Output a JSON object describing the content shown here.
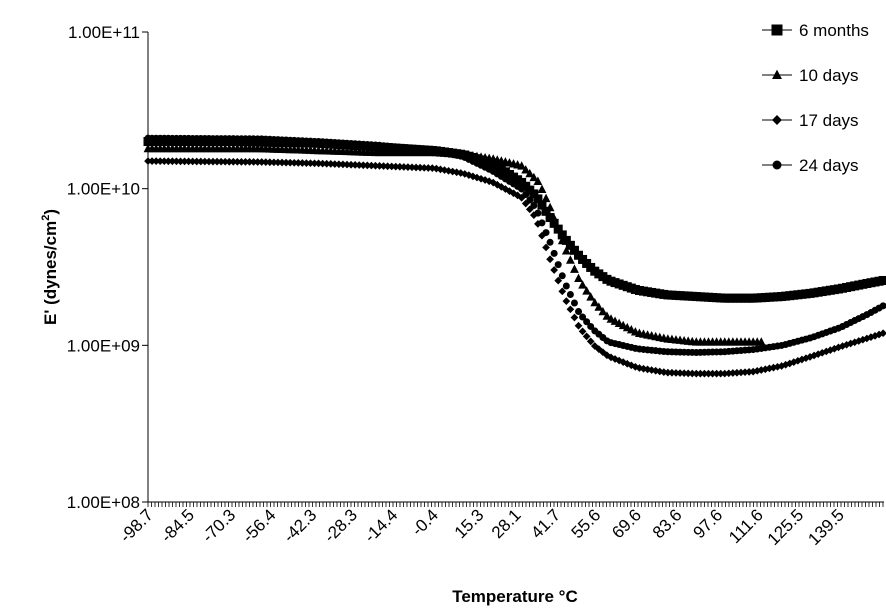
{
  "chart_data": {
    "type": "scatter",
    "title": "",
    "xlabel": "Temperature °C",
    "ylabel_main": "E' (dynes/cm",
    "ylabel_sup": "2",
    "ylabel_close": ")",
    "yscale": "log",
    "ylim": [
      100000000,
      100000000000
    ],
    "xlim": [
      -98.7,
      155
    ],
    "y_ticks": [
      {
        "value": 100000000,
        "label": "1.00E+08"
      },
      {
        "value": 1000000000,
        "label": "1.00E+09"
      },
      {
        "value": 10000000000,
        "label": "1.00E+10"
      },
      {
        "value": 100000000000,
        "label": "1.00E+11"
      }
    ],
    "x_ticks": [
      {
        "value": -98.7,
        "label": "-98.7"
      },
      {
        "value": -84.5,
        "label": "-84.5"
      },
      {
        "value": -70.3,
        "label": "-70.3"
      },
      {
        "value": -56.4,
        "label": "-56.4"
      },
      {
        "value": -42.3,
        "label": "-42.3"
      },
      {
        "value": -28.3,
        "label": "-28.3"
      },
      {
        "value": -14.4,
        "label": "-14.4"
      },
      {
        "value": -0.4,
        "label": "-0.4"
      },
      {
        "value": 15.3,
        "label": "15.3"
      },
      {
        "value": 28.1,
        "label": "28.1"
      },
      {
        "value": 41.7,
        "label": "41.7"
      },
      {
        "value": 55.6,
        "label": "55.6"
      },
      {
        "value": 69.6,
        "label": "69.6"
      },
      {
        "value": 83.6,
        "label": "83.6"
      },
      {
        "value": 97.6,
        "label": "97.6"
      },
      {
        "value": 111.6,
        "label": "111.6"
      },
      {
        "value": 125.5,
        "label": "125.5"
      },
      {
        "value": 139.5,
        "label": "139.5"
      }
    ],
    "grid": false,
    "legend_position": "top-right",
    "series": [
      {
        "name": "6 months",
        "marker": "square",
        "color": "#000000",
        "x_range": [
          -98.7,
          155
        ],
        "points": [
          [
            -98.7,
            20000000000
          ],
          [
            -70,
            20000000000
          ],
          [
            -40,
            19500000000
          ],
          [
            -20,
            18500000000
          ],
          [
            0,
            17500000000
          ],
          [
            10,
            16500000000
          ],
          [
            20,
            14500000000
          ],
          [
            30,
            11000000000
          ],
          [
            35,
            9000000000
          ],
          [
            40,
            6500000000
          ],
          [
            45,
            4800000000
          ],
          [
            50,
            3700000000
          ],
          [
            55,
            3000000000
          ],
          [
            60,
            2600000000
          ],
          [
            70,
            2250000000
          ],
          [
            80,
            2100000000
          ],
          [
            90,
            2050000000
          ],
          [
            100,
            2000000000
          ],
          [
            110,
            2000000000
          ],
          [
            120,
            2050000000
          ],
          [
            130,
            2150000000
          ],
          [
            140,
            2300000000
          ],
          [
            150,
            2500000000
          ],
          [
            155,
            2600000000
          ]
        ]
      },
      {
        "name": "10 days",
        "marker": "triangle",
        "color": "#000000",
        "x_range": [
          -98.7,
          114
        ],
        "points": [
          [
            -98.7,
            18000000000
          ],
          [
            -60,
            18000000000
          ],
          [
            -40,
            17500000000
          ],
          [
            -20,
            17000000000
          ],
          [
            0,
            17000000000
          ],
          [
            10,
            16500000000
          ],
          [
            20,
            15500000000
          ],
          [
            30,
            14000000000
          ],
          [
            36,
            11000000000
          ],
          [
            40,
            7500000000
          ],
          [
            45,
            4200000000
          ],
          [
            50,
            2600000000
          ],
          [
            55,
            1900000000
          ],
          [
            60,
            1500000000
          ],
          [
            70,
            1200000000
          ],
          [
            80,
            1100000000
          ],
          [
            90,
            1050000000
          ],
          [
            100,
            1050000000
          ],
          [
            114,
            1050000000
          ]
        ]
      },
      {
        "name": "17 days",
        "marker": "diamond",
        "color": "#000000",
        "x_range": [
          -98.7,
          155
        ],
        "points": [
          [
            -98.7,
            15000000000
          ],
          [
            -60,
            14800000000
          ],
          [
            -40,
            14500000000
          ],
          [
            -20,
            14000000000
          ],
          [
            0,
            13500000000
          ],
          [
            10,
            12500000000
          ],
          [
            20,
            11000000000
          ],
          [
            30,
            8800000000
          ],
          [
            35,
            6500000000
          ],
          [
            40,
            3500000000
          ],
          [
            45,
            2000000000
          ],
          [
            50,
            1300000000
          ],
          [
            55,
            1000000000
          ],
          [
            60,
            850000000
          ],
          [
            70,
            720000000
          ],
          [
            80,
            670000000
          ],
          [
            90,
            660000000
          ],
          [
            100,
            660000000
          ],
          [
            110,
            680000000
          ],
          [
            120,
            740000000
          ],
          [
            130,
            850000000
          ],
          [
            140,
            980000000
          ],
          [
            150,
            1120000000
          ],
          [
            155,
            1200000000
          ]
        ]
      },
      {
        "name": "24 days",
        "marker": "circle",
        "color": "#000000",
        "x_range": [
          -98.7,
          155
        ],
        "points": [
          [
            -98.7,
            21000000000
          ],
          [
            -60,
            20800000000
          ],
          [
            -40,
            20000000000
          ],
          [
            -20,
            19000000000
          ],
          [
            0,
            17500000000
          ],
          [
            10,
            16000000000
          ],
          [
            20,
            13000000000
          ],
          [
            30,
            10000000000
          ],
          [
            35,
            7500000000
          ],
          [
            40,
            4500000000
          ],
          [
            45,
            2500000000
          ],
          [
            50,
            1600000000
          ],
          [
            55,
            1250000000
          ],
          [
            60,
            1050000000
          ],
          [
            70,
            950000000
          ],
          [
            80,
            910000000
          ],
          [
            90,
            900000000
          ],
          [
            100,
            910000000
          ],
          [
            110,
            940000000
          ],
          [
            120,
            1000000000
          ],
          [
            130,
            1120000000
          ],
          [
            140,
            1300000000
          ],
          [
            150,
            1600000000
          ],
          [
            155,
            1800000000
          ]
        ]
      }
    ]
  }
}
